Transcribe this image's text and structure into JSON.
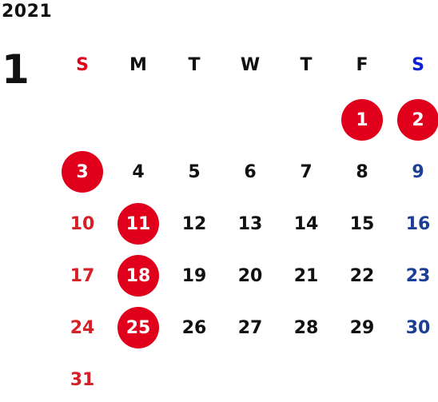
{
  "year": "2021",
  "month": "1",
  "weekdays": [
    "S",
    "M",
    "T",
    "W",
    "T",
    "F",
    "S"
  ],
  "weeks": [
    [
      "",
      "",
      "",
      "",
      "",
      "1",
      "2"
    ],
    [
      "3",
      "4",
      "5",
      "6",
      "7",
      "8",
      "9"
    ],
    [
      "10",
      "11",
      "12",
      "13",
      "14",
      "15",
      "16"
    ],
    [
      "17",
      "18",
      "19",
      "20",
      "21",
      "22",
      "23"
    ],
    [
      "24",
      "25",
      "26",
      "27",
      "28",
      "29",
      "30"
    ],
    [
      "31",
      "",
      "",
      "",
      "",
      "",
      ""
    ]
  ],
  "holidays": [
    "1",
    "2",
    "3",
    "11",
    "18",
    "25"
  ],
  "colors": {
    "holiday_fill": "#e0001b",
    "sunday_text": "#d61f26",
    "saturday_text": "#1d3e95",
    "weekday_text": "#111111"
  }
}
